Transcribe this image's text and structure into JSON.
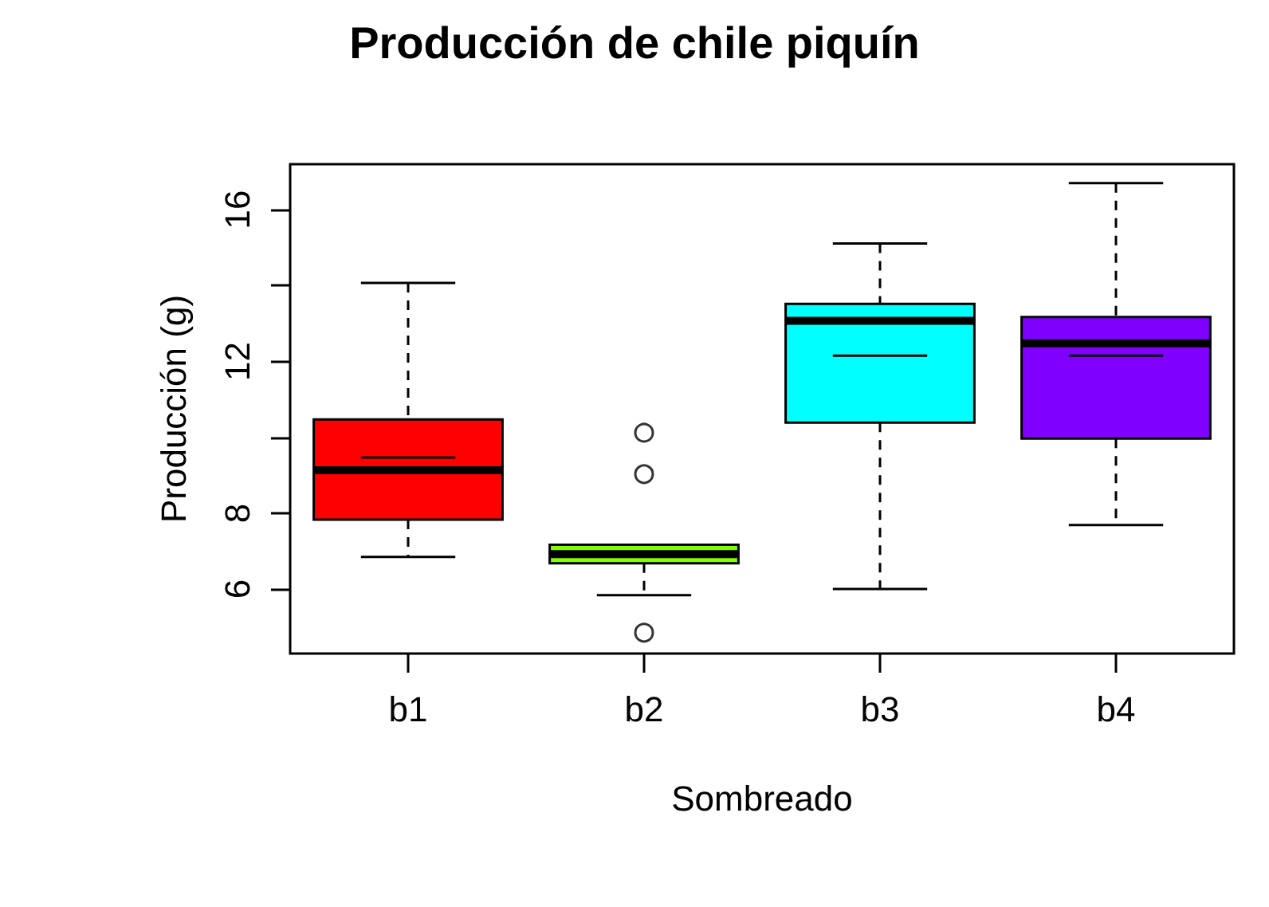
{
  "chart_data": {
    "type": "box",
    "title": "Producción de chile piquín",
    "xlabel": "Sombreado",
    "ylabel": "Producción (g)",
    "categories": [
      "b1",
      "b2",
      "b3",
      "b4"
    ],
    "colors": [
      "#ff0000",
      "#7fff00",
      "#00ffff",
      "#8000ff"
    ],
    "boxes": [
      {
        "low": 6.85,
        "q1": 7.83,
        "median": 9.13,
        "q3": 10.47,
        "high": 14.07,
        "mean": 9.47
      },
      {
        "low": 5.84,
        "q1": 6.68,
        "median": 6.92,
        "q3": 7.17,
        "high": 7.17,
        "outliers": [
          10.12,
          9.03,
          4.85
        ]
      },
      {
        "low": 6.0,
        "q1": 10.39,
        "median": 13.07,
        "q3": 13.52,
        "high": 15.11,
        "mean": 12.15
      },
      {
        "low": 7.69,
        "q1": 9.97,
        "median": 12.48,
        "q3": 13.17,
        "high": 16.7,
        "mean": 12.15
      }
    ],
    "ylim": [
      4.3,
      17.2
    ],
    "yticks": [
      6,
      8,
      {
        "value": 10,
        "label": null
      },
      12,
      {
        "value": 14,
        "label": null
      },
      16
    ],
    "grid": false
  }
}
